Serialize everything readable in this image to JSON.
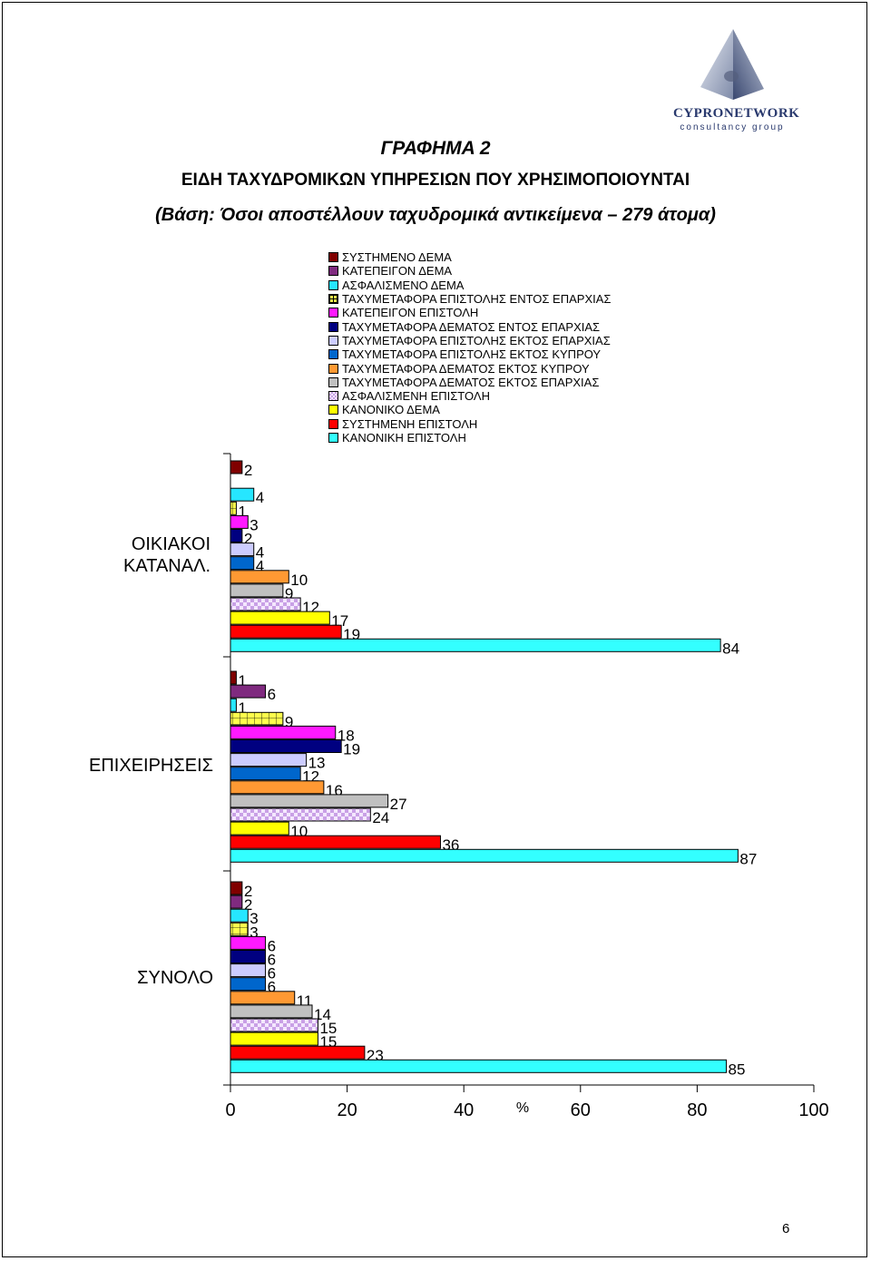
{
  "logo": {
    "word": "CYPRONETWORK",
    "sub": "consultancy group"
  },
  "header": {
    "figure": "ΓΡΑΦΗΜΑ 2",
    "title": "ΕΙΔΗ ΤΑΧΥΔΡΟΜΙΚΩΝ ΥΠΗΡΕΣΙΩΝ ΠΟΥ ΧΡΗΣΙΜΟΠΟΙΟΥΝΤΑΙ",
    "base": "(Βάση:  Όσοι αποστέλλουν ταχυδρομικά αντικείμενα – 279 άτομα)"
  },
  "page_number": "6",
  "chart_data": {
    "type": "bar",
    "orientation": "horizontal",
    "xlabel": "%",
    "xlim": [
      0,
      100
    ],
    "xticks": [
      "0",
      "20",
      "40",
      "60",
      "80",
      "100"
    ],
    "legend_position": "top",
    "categories": [
      "ΟΙΚΙΑΚΟΙ ΚΑΤΑΝΑΛ.",
      "ΕΠΙΧΕΙΡΗΣΕΙΣ",
      "ΣΥΝΟΛΟ"
    ],
    "series": [
      {
        "name": "ΣΥΣΤΗΜΕΝΟ ΔΕΜΑ",
        "color": "#800000",
        "values": [
          2,
          1,
          2
        ]
      },
      {
        "name": "ΚΑΤΕΠΕΙΓΟΝ ΔΕΜΑ",
        "color": "#7f2a7f",
        "values": [
          null,
          6,
          2
        ]
      },
      {
        "name": "ΑΣΦΑΛΙΣΜΕΝΟ ΔΕΜΑ",
        "color": "#26e6ff",
        "values": [
          4,
          1,
          3
        ]
      },
      {
        "name": "ΤΑΧΥΜΕΤΑΦΟΡΑ ΕΠΙΣΤΟΛΗΣ ΕΝΤΟΣ ΕΠΑΡΧΙΑΣ",
        "color": "#ffff4d",
        "pattern": "grid",
        "values": [
          1,
          9,
          3
        ]
      },
      {
        "name": "ΚΑΤΕΠΕΙΓΟΝ ΕΠΙΣΤΟΛΗ",
        "color": "#ff19ff",
        "values": [
          3,
          18,
          6
        ]
      },
      {
        "name": "ΤΑΧΥΜΕΤΑΦΟΡΑ ΔΕΜΑΤΟΣ ΕΝΤΟΣ ΕΠΑΡΧΙΑΣ",
        "color": "#000080",
        "values": [
          2,
          19,
          6
        ]
      },
      {
        "name": "ΤΑΧΥΜΕΤΑΦΟΡΑ ΕΠΙΣΤΟΛΗΣ ΕΚΤΟΣ ΕΠΑΡΧΙΑΣ",
        "color": "#ccccff",
        "values": [
          4,
          13,
          6
        ]
      },
      {
        "name": "ΤΑΧΥΜΕΤΑΦΟΡΑ ΕΠΙΣΤΟΛΗΣ ΕΚΤΟΣ ΚΥΠΡΟΥ",
        "color": "#0066cc",
        "values": [
          4,
          12,
          6
        ]
      },
      {
        "name": "ΤΑΧΥΜΕΤΑΦΟΡΑ ΔΕΜΑΤΟΣ ΕΚΤΟΣ ΚΥΠΡΟΥ",
        "color": "#ff9933",
        "values": [
          10,
          16,
          11
        ]
      },
      {
        "name": "ΤΑΧΥΜΕΤΑΦΟΡΑ ΔΕΜΑΤΟΣ ΕΚΤΟΣ ΕΠΑΡΧΙΑΣ",
        "color": "#c0c0c0",
        "values": [
          9,
          27,
          14
        ]
      },
      {
        "name": "ΑΣΦΑΛΙΣΜΕΝΗ ΕΠΙΣΤΟΛΗ",
        "color": "#e0c8f0",
        "pattern": "checker",
        "values": [
          12,
          24,
          15
        ]
      },
      {
        "name": "ΚΑΝΟΝΙΚΟ ΔΕΜΑ",
        "color": "#ffff00",
        "values": [
          17,
          10,
          15
        ]
      },
      {
        "name": "ΣΥΣΤΗΜΕΝΗ ΕΠΙΣΤΟΛΗ",
        "color": "#ff0000",
        "values": [
          19,
          36,
          23
        ]
      },
      {
        "name": "ΚΑΝΟΝΙΚΗ ΕΠΙΣΤΟΛΗ",
        "color": "#33ffff",
        "values": [
          84,
          87,
          85
        ]
      }
    ]
  }
}
